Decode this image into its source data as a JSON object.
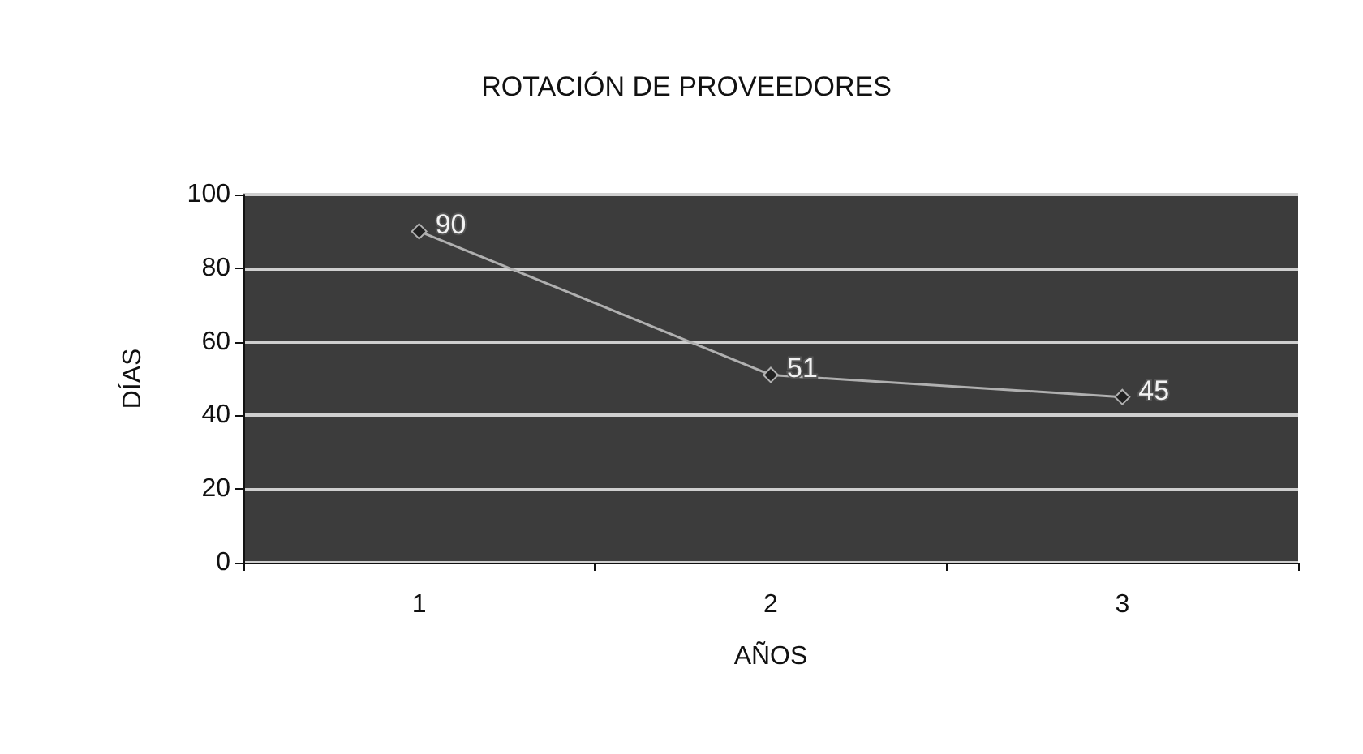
{
  "chart_data": {
    "type": "line",
    "title": "ROTACIÓN DE PROVEEDORES",
    "xlabel": "AÑOS",
    "ylabel": "DÍAS",
    "categories": [
      "1",
      "2",
      "3"
    ],
    "series": [
      {
        "color": "#b0b0b0",
        "values": [
          90,
          51,
          45
        ]
      }
    ],
    "ylim": [
      0,
      100
    ],
    "yticks": [
      0,
      20,
      40,
      60,
      80,
      100
    ],
    "grid": "y",
    "marker": "diamond",
    "line_style": "solid",
    "data_labels": true
  }
}
